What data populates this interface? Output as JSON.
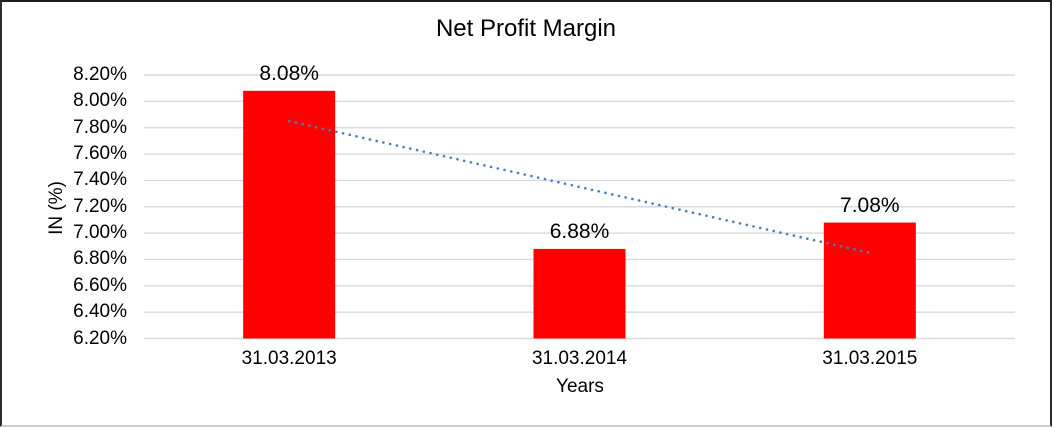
{
  "chart_data": {
    "type": "bar",
    "title": "Net Profit Margin",
    "xlabel": "Years",
    "ylabel": "IN (%)",
    "categories": [
      "31.03.2013",
      "31.03.2014",
      "31.03.2015"
    ],
    "values": [
      8.08,
      6.88,
      7.08
    ],
    "data_labels": [
      "8.08%",
      "6.88%",
      "7.08%"
    ],
    "ylim": [
      6.2,
      8.2
    ],
    "ytick_step": 0.2,
    "ytick_labels": [
      "8.20%",
      "8.00%",
      "7.80%",
      "7.60%",
      "7.40%",
      "7.20%",
      "7.00%",
      "6.80%",
      "6.60%",
      "6.40%",
      "6.20%"
    ],
    "grid": true,
    "legend": "none",
    "bar_color": "#FF0000",
    "gridline_color": "#D9D9D9",
    "text_color": "#000000",
    "trendline": {
      "type": "linear",
      "style": "dotted",
      "color": "#4A7EBB",
      "start_value": 7.85,
      "end_value": 6.85
    }
  }
}
